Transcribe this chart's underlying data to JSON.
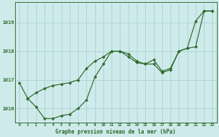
{
  "xlabel": "Graphe pression niveau de la mer (hPa)",
  "x_ticks": [
    0,
    1,
    2,
    3,
    4,
    5,
    6,
    7,
    8,
    9,
    10,
    11,
    12,
    13,
    14,
    15,
    16,
    17,
    18,
    19,
    20,
    21,
    22,
    23
  ],
  "ylim": [
    1015.5,
    1019.7
  ],
  "yticks": [
    1016,
    1017,
    1018,
    1019
  ],
  "background_color": "#ceeaea",
  "grid_color": "#afd4d4",
  "line_color": "#2d6a2d",
  "series_a_x": [
    0,
    1,
    2,
    3,
    4,
    5,
    6,
    7,
    8,
    9,
    10,
    11,
    12,
    13,
    14,
    15,
    16,
    17,
    18,
    19,
    20,
    21,
    22,
    23
  ],
  "series_a_y": [
    1016.9,
    1016.35,
    1016.55,
    1016.7,
    1016.8,
    1016.85,
    1016.9,
    1017.0,
    1017.4,
    1017.65,
    1017.8,
    1018.0,
    1018.0,
    1017.8,
    1017.6,
    1017.55,
    1017.7,
    1017.3,
    1017.4,
    1018.0,
    1018.1,
    1019.05,
    1019.4,
    1019.4
  ],
  "series_b_x": [
    1,
    2,
    3,
    4,
    5,
    6,
    7,
    8,
    9,
    10,
    11,
    12,
    13,
    14,
    15,
    16,
    17,
    18,
    19,
    20,
    21,
    22,
    23
  ],
  "series_b_y": [
    1016.35,
    1016.05,
    1015.65,
    1015.65,
    1015.75,
    1015.8,
    1016.0,
    1016.3,
    1017.1,
    1017.55,
    1018.0,
    1018.0,
    1017.9,
    1017.65,
    1017.55,
    1017.55,
    1017.25,
    1017.35,
    1018.0,
    1018.1,
    1018.15,
    1019.4,
    1019.4
  ]
}
